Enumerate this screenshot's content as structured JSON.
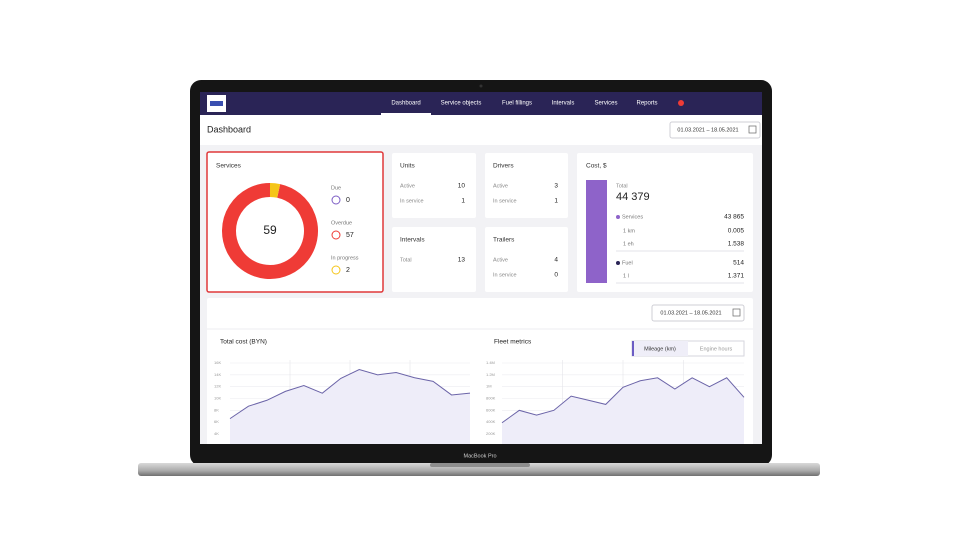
{
  "device": "MacBook Pro",
  "nav": {
    "items": [
      "Dashboard",
      "Service objects",
      "Fuel fillings",
      "Intervals",
      "Services",
      "Reports"
    ],
    "active": 0
  },
  "header": {
    "title": "Dashboard",
    "date_range": "01.03.2021 – 18.05.2021"
  },
  "services": {
    "title": "Services",
    "total": 59,
    "segments": [
      {
        "name": "Due",
        "value": 0,
        "color": "#7b5cc4"
      },
      {
        "name": "Overdue",
        "value": 57,
        "color": "#ef3b36"
      },
      {
        "name": "In progress",
        "value": 2,
        "color": "#f5c518"
      }
    ]
  },
  "units": {
    "title": "Units",
    "rows": [
      [
        "Active",
        10
      ],
      [
        "In service",
        1
      ]
    ]
  },
  "drivers": {
    "title": "Drivers",
    "rows": [
      [
        "Active",
        3
      ],
      [
        "In service",
        1
      ]
    ]
  },
  "intervals": {
    "title": "Intervals",
    "rows": [
      [
        "Total",
        13
      ]
    ]
  },
  "trailers": {
    "title": "Trailers",
    "rows": [
      [
        "Active",
        4
      ],
      [
        "In service",
        0
      ]
    ]
  },
  "cost": {
    "title": "Cost, $",
    "total_label": "Total",
    "total": "44 379",
    "rows": [
      [
        "Services",
        "43 865"
      ],
      [
        "1 km",
        0.005
      ],
      [
        "1 eh",
        1.538
      ],
      [
        "Fuel",
        514
      ],
      [
        "1 l",
        1.371
      ]
    ]
  },
  "lower": {
    "date_range": "01.03.2021 – 18.05.2021",
    "toggle": [
      "Mileage (km)",
      "Engine hours"
    ],
    "charts": [
      {
        "type": "line",
        "title": "Total cost (BYN)",
        "color": "#6b64a8",
        "ylim": [
          4000,
          16000
        ],
        "yticks": [
          {
            "value": 16000,
            "label": "16K"
          },
          {
            "value": 14000,
            "label": "14K"
          },
          {
            "value": 12000,
            "label": "12K"
          },
          {
            "value": 10000,
            "label": "10K"
          },
          {
            "value": 8000,
            "label": "8K"
          },
          {
            "value": 6000,
            "label": "6K"
          },
          {
            "value": 4000,
            "label": "4K"
          }
        ],
        "values": [
          6600,
          8700,
          9700,
          11200,
          12200,
          10900,
          13400,
          14900,
          14000,
          14400,
          13500,
          12900,
          10600,
          10900
        ]
      },
      {
        "type": "line",
        "title": "Fleet metrics",
        "color": "#6b64a8",
        "ylim": [
          200000,
          1400000
        ],
        "yticks": [
          {
            "value": 1400000,
            "label": "1.4M"
          },
          {
            "value": 1200000,
            "label": "1.2M"
          },
          {
            "value": 1000000,
            "label": "1M"
          },
          {
            "value": 800000,
            "label": "800K"
          },
          {
            "value": 600000,
            "label": "600K"
          },
          {
            "value": 400000,
            "label": "400K"
          },
          {
            "value": 200000,
            "label": "200K"
          }
        ],
        "values": [
          390000,
          600000,
          520000,
          600000,
          840000,
          770000,
          700000,
          990000,
          1100000,
          1150000,
          960000,
          1150000,
          1000000,
          1150000,
          820000
        ]
      }
    ]
  }
}
